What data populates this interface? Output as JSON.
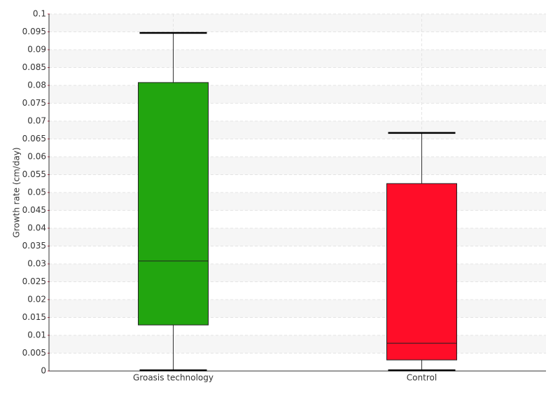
{
  "chart_data": {
    "type": "box",
    "y_label": "Growth rate (cm/day)",
    "categories": [
      "Groasis technology",
      "Control"
    ],
    "boxes": [
      {
        "min": 0.0002,
        "q1": 0.0129,
        "median": 0.0308,
        "q3": 0.0808,
        "max": 0.0947,
        "color": "#22a50f"
      },
      {
        "min": 0.0002,
        "q1": 0.0031,
        "median": 0.0078,
        "q3": 0.0525,
        "max": 0.0667,
        "color": "#ff0d28"
      }
    ],
    "ylim": [
      0,
      0.1
    ],
    "yticks": [
      0,
      0.005,
      0.01,
      0.015,
      0.02,
      0.025,
      0.03,
      0.035,
      0.04,
      0.045,
      0.05,
      0.055,
      0.06,
      0.065,
      0.07,
      0.075,
      0.08,
      0.085,
      0.09,
      0.095,
      0.1
    ],
    "grid": true
  }
}
